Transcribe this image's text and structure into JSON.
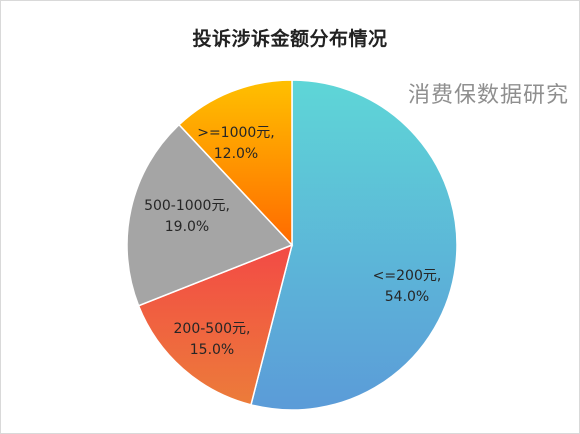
{
  "chart_data": {
    "type": "pie",
    "title": "投诉涉诉金额分布情况",
    "watermark": "消费保数据研究",
    "slices": [
      {
        "label": "<=200元",
        "value": 54.0,
        "value_label": "54.0%",
        "colors": [
          "#5ed6d7",
          "#5b9bd8"
        ]
      },
      {
        "label": "200-500元",
        "value": 15.0,
        "value_label": "15.0%",
        "colors": [
          "#f34a45",
          "#ec7c3a"
        ]
      },
      {
        "label": "500-1000元",
        "value": 19.0,
        "value_label": "19.0%",
        "colors": [
          "#a5a5a5",
          "#a5a5a5"
        ]
      },
      {
        "label": ">=1000元",
        "value": 12.0,
        "value_label": "12.0%",
        "colors": [
          "#ffc000",
          "#ff6a00"
        ]
      }
    ]
  }
}
